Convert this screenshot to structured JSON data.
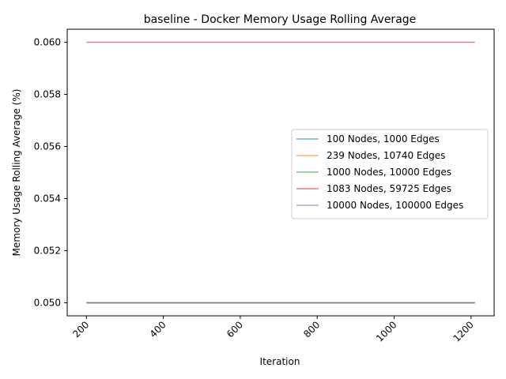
{
  "chart_data": {
    "type": "line",
    "title": "baseline - Docker Memory Usage Rolling Average",
    "xlabel": "Iteration",
    "ylabel": "Memory Usage Rolling Average (%)",
    "xlim": [
      150,
      1260
    ],
    "ylim": [
      0.0495,
      0.0605
    ],
    "xticks": [
      200,
      400,
      600,
      800,
      1000,
      1200
    ],
    "yticks": [
      0.05,
      0.052,
      0.054,
      0.056,
      0.058,
      0.06
    ],
    "ytick_labels": [
      "0.050",
      "0.052",
      "0.054",
      "0.056",
      "0.058",
      "0.060"
    ],
    "grid": false,
    "legend_position": "center-right",
    "series": [
      {
        "name": "100 Nodes, 1000 Edges",
        "color": "#1f77b4",
        "x": [
          200,
          1210
        ],
        "y": [
          0.05,
          0.05
        ]
      },
      {
        "name": "239 Nodes, 10740 Edges",
        "color": "#ff7f0e",
        "x": [
          200,
          1210
        ],
        "y": [
          0.05,
          0.05
        ]
      },
      {
        "name": "1000 Nodes, 10000 Edges",
        "color": "#2ca02c",
        "x": [
          200,
          1210
        ],
        "y": [
          0.05,
          0.05
        ]
      },
      {
        "name": "1083 Nodes, 59725 Edges",
        "color": "#d62728",
        "x": [
          200,
          1210
        ],
        "y": [
          0.06,
          0.06
        ]
      },
      {
        "name": "10000 Nodes, 100000 Edges",
        "color": "#9467bd",
        "x": [
          200,
          1210
        ],
        "y": [
          0.05,
          0.05
        ]
      }
    ]
  }
}
